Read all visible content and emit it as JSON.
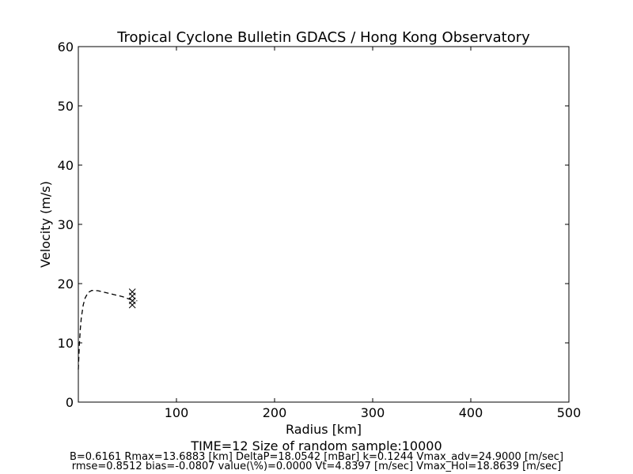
{
  "chart_data": {
    "type": "line",
    "title": "Tropical Cyclone Bulletin GDACS / Hong Kong Observatory",
    "xlabel": "Radius [km]",
    "ylabel": "Velocity (m/s)",
    "xlim": [
      0,
      500
    ],
    "ylim": [
      0,
      60
    ],
    "xticks": [
      100,
      200,
      300,
      400,
      500
    ],
    "yticks": [
      0,
      10,
      20,
      30,
      40,
      50,
      60
    ],
    "grid": false,
    "series": [
      {
        "style": "dashed",
        "color": "#000000",
        "x": [
          0,
          0.5,
          1,
          2,
          3,
          5,
          7,
          10,
          13.7,
          20,
          25,
          30,
          35,
          40,
          45,
          50,
          55
        ],
        "y": [
          5.5,
          7.5,
          9.5,
          12.3,
          14.2,
          16.4,
          17.6,
          18.5,
          18.85,
          18.8,
          18.6,
          18.4,
          18.2,
          18.0,
          17.8,
          17.5,
          17.2
        ]
      },
      {
        "style": "dotted",
        "color": "#000000",
        "x": [
          56,
          58,
          60,
          62
        ],
        "y": [
          17.2,
          17.15,
          17.1,
          17.05
        ]
      },
      {
        "style": "marker-x",
        "color": "#000000",
        "x": [
          55,
          55,
          55,
          55
        ],
        "y": [
          18.6,
          17.9,
          17.1,
          16.4
        ]
      }
    ]
  },
  "footer": {
    "line1": "TIME=12     Size of random sample:10000",
    "line2": "B=0.6161 Rmax=13.6883 [km]  DeltaP=18.0542 [mBar] k=0.1244 Vmax_adv=24.9000 [m/sec]",
    "line3": "rmse=0.8512 bias=-0.0807 value(\\%)=0.0000 Vt=4.8397 [m/sec] Vmax_Hol=18.8639 [m/sec]"
  }
}
